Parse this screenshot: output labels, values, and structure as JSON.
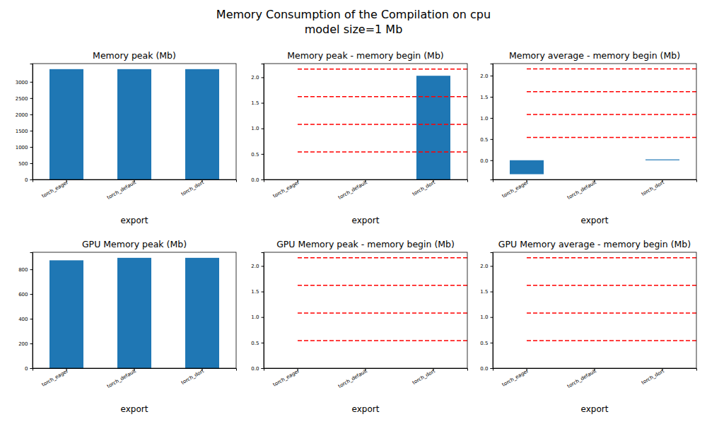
{
  "title": "Memory Consumption of the Compilation on cpu",
  "subtitle": "model size=1 Mb",
  "chart_data": [
    {
      "type": "bar",
      "title": "Memory peak (Mb)",
      "x_label": "export",
      "categories": [
        "torch_eager",
        "torch_default",
        "torch_dort"
      ],
      "values": [
        3390,
        3390,
        3390
      ],
      "color": "#1f77b4",
      "ylim": [
        0,
        3560
      ],
      "yticks": [
        0,
        500,
        1000,
        1500,
        2000,
        2500,
        3000
      ]
    },
    {
      "type": "bar",
      "title": "Memory peak - memory begin (Mb)",
      "x_label": "export",
      "categories": [
        "torch_eager",
        "torch_default",
        "torch_dort"
      ],
      "values": [
        0,
        0,
        2.03
      ],
      "color": "#1f77b4",
      "ylim": [
        0,
        2.268
      ],
      "yticks": [
        {
          "value": 0,
          "label": "0.0"
        },
        {
          "value": 0.5,
          "label": "0.5"
        },
        {
          "value": 1,
          "label": "1.0"
        },
        {
          "value": 1.5,
          "label": "1.5"
        },
        {
          "value": 2,
          "label": "2.0"
        }
      ],
      "hlines": {
        "values": [
          0.54,
          1.08,
          1.62,
          2.16
        ],
        "color": "red",
        "line_style": "dashed"
      }
    },
    {
      "type": "bar",
      "title": "Memory average - memory begin (Mb)",
      "x_label": "export",
      "categories": [
        "torch_eager",
        "torch_default",
        "torch_dort"
      ],
      "values": [
        -0.33,
        0,
        0.02
      ],
      "color": "#1f77b4",
      "ylim": [
        -0.455,
        2.285
      ],
      "yticks": [
        {
          "value": 0,
          "label": "0.0"
        },
        {
          "value": 0.5,
          "label": "0.5"
        },
        {
          "value": 1,
          "label": "1.0"
        },
        {
          "value": 1.5,
          "label": "1.5"
        },
        {
          "value": 2,
          "label": "2.0"
        }
      ],
      "hlines": {
        "values": [
          0.54,
          1.08,
          1.62,
          2.16
        ],
        "color": "red",
        "line_style": "dashed"
      }
    },
    {
      "type": "bar",
      "title": "GPU Memory peak (Mb)",
      "x_label": "export",
      "categories": [
        "torch_eager",
        "torch_default",
        "torch_dort"
      ],
      "values": [
        873,
        893,
        893
      ],
      "color": "#1f77b4",
      "ylim": [
        0,
        938
      ],
      "yticks": [
        0,
        200,
        400,
        600,
        800
      ]
    },
    {
      "type": "bar",
      "title": "GPU Memory peak - memory begin (Mb)",
      "x_label": "export",
      "categories": [
        "torch_eager",
        "torch_default",
        "torch_dort"
      ],
      "values": [
        0,
        0,
        0
      ],
      "color": "#1f77b4",
      "ylim": [
        0,
        2.268
      ],
      "yticks": [
        {
          "value": 0,
          "label": "0.0"
        },
        {
          "value": 0.5,
          "label": "0.5"
        },
        {
          "value": 1,
          "label": "1.0"
        },
        {
          "value": 1.5,
          "label": "1.5"
        },
        {
          "value": 2,
          "label": "2.0"
        }
      ],
      "hlines": {
        "values": [
          0.54,
          1.08,
          1.62,
          2.16
        ],
        "color": "red",
        "line_style": "dashed"
      }
    },
    {
      "type": "bar",
      "title": "GPU Memory average - memory begin (Mb)",
      "x_label": "export",
      "categories": [
        "torch_eager",
        "torch_default",
        "torch_dort"
      ],
      "values": [
        0,
        0,
        0
      ],
      "color": "#1f77b4",
      "ylim": [
        0,
        2.268
      ],
      "yticks": [
        {
          "value": 0,
          "label": "0.0"
        },
        {
          "value": 0.5,
          "label": "0.5"
        },
        {
          "value": 1,
          "label": "1.0"
        },
        {
          "value": 1.5,
          "label": "1.5"
        },
        {
          "value": 2,
          "label": "2.0"
        }
      ],
      "hlines": {
        "values": [
          0.54,
          1.08,
          1.62,
          2.16
        ],
        "color": "red",
        "line_style": "dashed"
      }
    }
  ]
}
